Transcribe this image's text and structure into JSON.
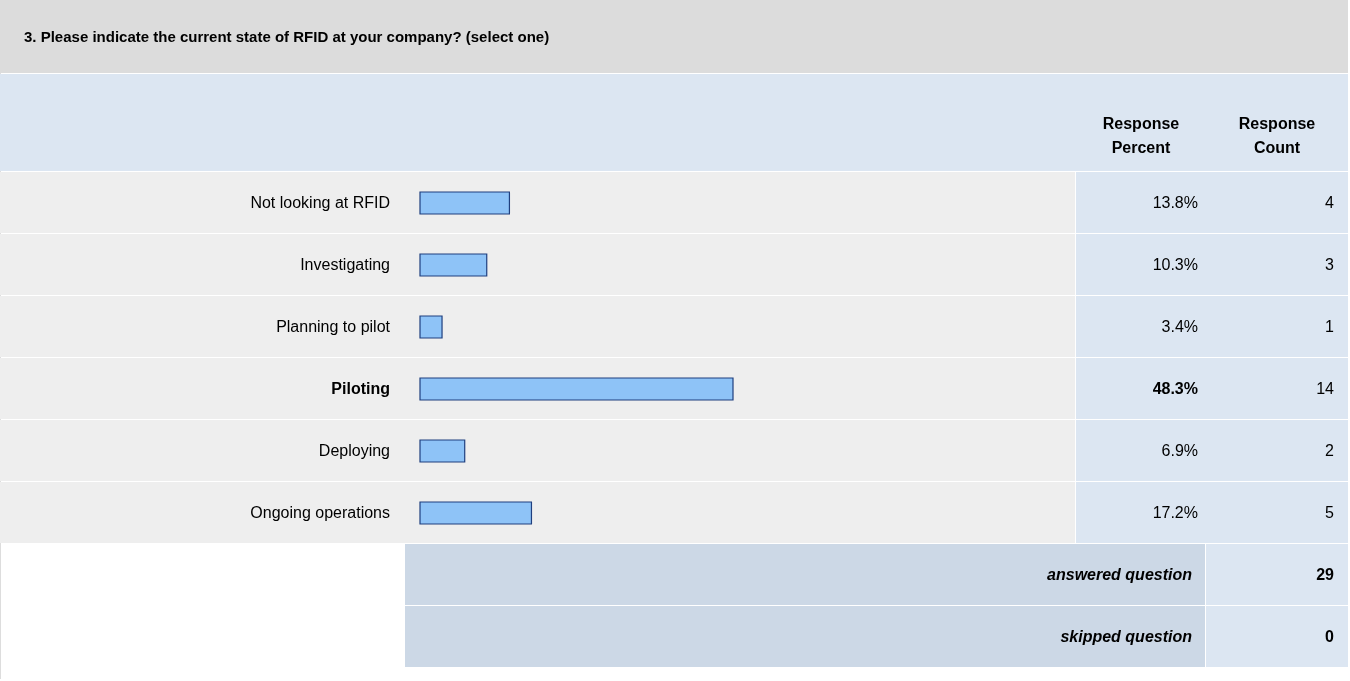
{
  "chart_data": {
    "type": "bar",
    "orientation": "horizontal",
    "title": "3. Please indicate the current state of RFID at your company? (select one)",
    "categories": [
      "Not looking at RFID",
      "Investigating",
      "Planning to pilot",
      "Piloting",
      "Deploying",
      "Ongoing operations"
    ],
    "values": [
      13.8,
      10.3,
      3.4,
      48.3,
      6.9,
      17.2
    ],
    "value_labels": [
      "13.8%",
      "10.3%",
      "3.4%",
      "48.3%",
      "6.9%",
      "17.2%"
    ],
    "color": "#8ec3f7",
    "annotations": [
      "Response Percent",
      "Response Count",
      "4",
      "3",
      "1",
      "14",
      "2",
      "5",
      "answered question",
      "29",
      "skipped question",
      "0"
    ]
  }
}
